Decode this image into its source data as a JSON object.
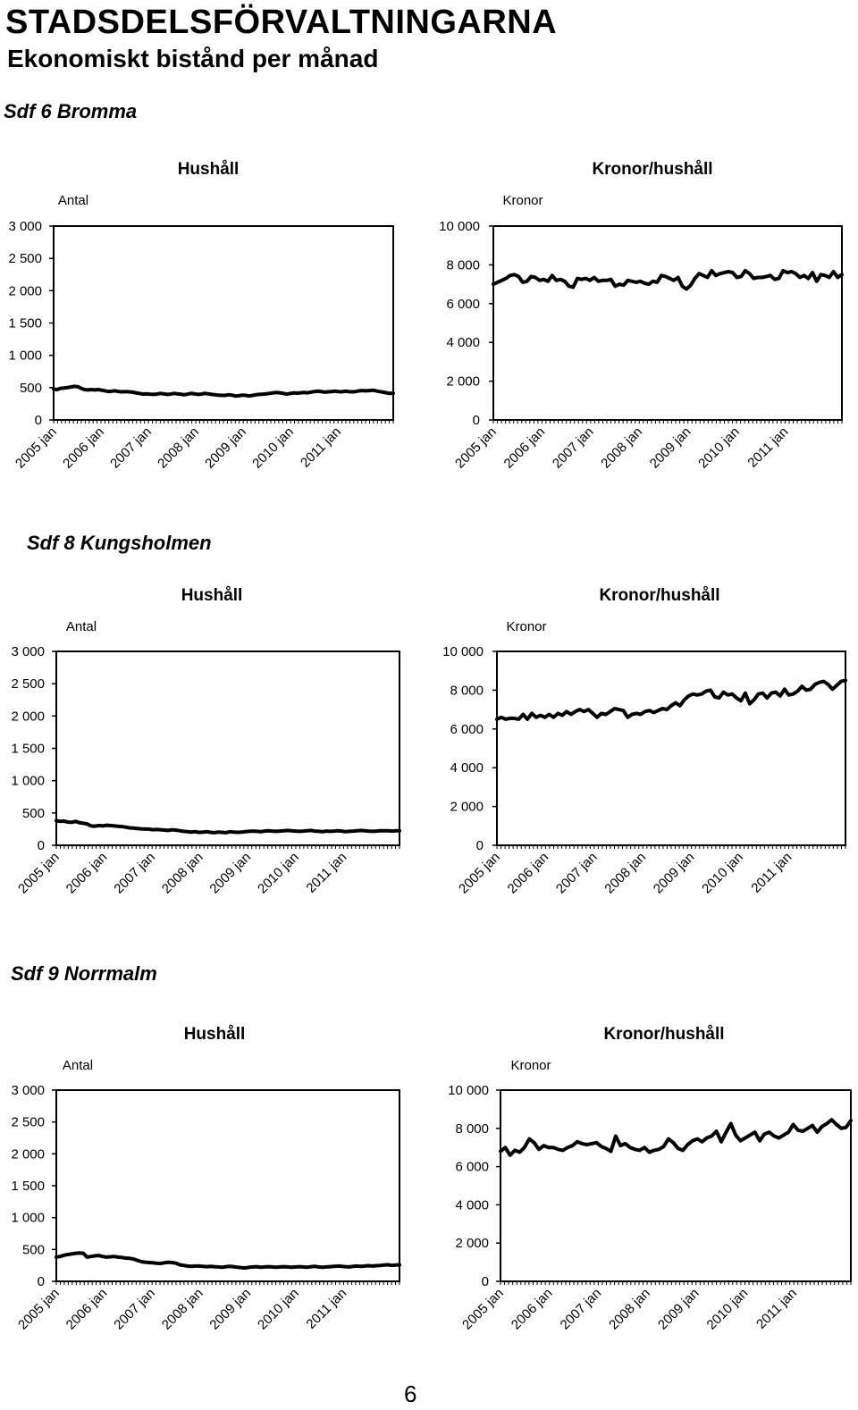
{
  "header": {
    "title": "STADSDELSFÖRVALTNINGARNA",
    "subtitle": "Ekonomiskt bistånd per månad"
  },
  "sections": [
    {
      "title": "Sdf 6 Bromma"
    },
    {
      "title": "Sdf 8 Kungsholmen"
    },
    {
      "title": "Sdf 9 Norrmalm"
    }
  ],
  "page_number": "6",
  "chart_data": [
    {
      "type": "line",
      "section": "Sdf 6 Bromma",
      "title": "Hushåll",
      "ylabel": "Antal",
      "xlabel": "",
      "ylim": [
        0,
        3000
      ],
      "grid": false,
      "yticks": [
        "0",
        "500",
        "1 000",
        "1 500",
        "2 000",
        "2 500",
        "3 000"
      ],
      "xticks": [
        "2005 jan",
        "2006 jan",
        "2007 jan",
        "2008 jan",
        "2009 jan",
        "2010 jan",
        "2011 jan"
      ],
      "x_start": "2005-01",
      "x_interval": "month",
      "series": [
        {
          "values": [
            480,
            470,
            490,
            495,
            500,
            510,
            520,
            515,
            490,
            470,
            465,
            470,
            465,
            470,
            460,
            450,
            440,
            445,
            450,
            440,
            435,
            440,
            435,
            430,
            420,
            410,
            400,
            405,
            400,
            395,
            400,
            410,
            405,
            395,
            400,
            410,
            405,
            400,
            390,
            400,
            410,
            405,
            395,
            400,
            410,
            405,
            395,
            390,
            385,
            380,
            380,
            390,
            385,
            370,
            375,
            385,
            380,
            370,
            380,
            390,
            395,
            400,
            405,
            410,
            420,
            425,
            420,
            410,
            400,
            410,
            420,
            415,
            420,
            425,
            420,
            430,
            440,
            445,
            440,
            430,
            435,
            440,
            445,
            440,
            435,
            445,
            440,
            435,
            440,
            450,
            455,
            450,
            455,
            460,
            450,
            440,
            430,
            420,
            410,
            415
          ]
        }
      ]
    },
    {
      "type": "line",
      "section": "Sdf 6 Bromma",
      "title": "Kronor/hushåll",
      "ylabel": "Kronor",
      "xlabel": "",
      "ylim": [
        0,
        10000
      ],
      "grid": false,
      "yticks": [
        "0",
        "2 000",
        "4 000",
        "6 000",
        "8 000",
        "10 000"
      ],
      "xticks": [
        "2005 jan",
        "2006 jan",
        "2007 jan",
        "2008 jan",
        "2009 jan",
        "2010 jan",
        "2011 jan"
      ],
      "x_start": "2005-01",
      "x_interval": "month",
      "series": [
        {
          "values": [
            7000,
            7100,
            7200,
            7300,
            7450,
            7500,
            7400,
            7100,
            7150,
            7400,
            7350,
            7200,
            7250,
            7150,
            7450,
            7200,
            7250,
            7150,
            6900,
            6850,
            7300,
            7250,
            7300,
            7200,
            7350,
            7150,
            7200,
            7200,
            7250,
            6900,
            7000,
            6950,
            7200,
            7150,
            7100,
            7150,
            7050,
            7000,
            7150,
            7100,
            7450,
            7400,
            7300,
            7200,
            7350,
            6900,
            6750,
            6950,
            7300,
            7550,
            7450,
            7350,
            7700,
            7450,
            7550,
            7600,
            7650,
            7600,
            7350,
            7400,
            7700,
            7550,
            7300,
            7350,
            7350,
            7400,
            7450,
            7250,
            7300,
            7700,
            7600,
            7650,
            7550,
            7350,
            7450,
            7300,
            7600,
            7150,
            7500,
            7450,
            7350,
            7650,
            7350,
            7500
          ]
        }
      ]
    },
    {
      "type": "line",
      "section": "Sdf 8 Kungsholmen",
      "title": "Hushåll",
      "ylabel": "Antal",
      "xlabel": "",
      "ylim": [
        0,
        3000
      ],
      "grid": false,
      "yticks": [
        "0",
        "500",
        "1 000",
        "1 500",
        "2 000",
        "2 500",
        "3 000"
      ],
      "xticks": [
        "2005 jan",
        "2006 jan",
        "2007 jan",
        "2008 jan",
        "2009 jan",
        "2010 jan",
        "2011 jan"
      ],
      "x_start": "2005-01",
      "x_interval": "month",
      "series": [
        {
          "values": [
            380,
            370,
            375,
            360,
            355,
            370,
            350,
            340,
            330,
            300,
            295,
            305,
            300,
            310,
            305,
            300,
            295,
            290,
            280,
            270,
            265,
            260,
            255,
            250,
            250,
            240,
            245,
            240,
            235,
            230,
            240,
            235,
            225,
            215,
            210,
            205,
            210,
            200,
            205,
            210,
            200,
            195,
            205,
            200,
            195,
            210,
            205,
            200,
            205,
            210,
            215,
            220,
            215,
            210,
            220,
            225,
            220,
            215,
            220,
            225,
            230,
            225,
            220,
            215,
            220,
            225,
            230,
            220,
            215,
            210,
            220,
            215,
            220,
            225,
            220,
            210,
            215,
            220,
            225,
            230,
            225,
            220,
            215,
            220,
            225,
            225,
            225,
            220,
            225,
            225
          ]
        }
      ]
    },
    {
      "type": "line",
      "section": "Sdf 8 Kungsholmen",
      "title": "Kronor/hushåll",
      "ylabel": "Kronor",
      "xlabel": "",
      "ylim": [
        0,
        10000
      ],
      "grid": false,
      "yticks": [
        "0",
        "2 000",
        "4 000",
        "6 000",
        "8 000",
        "10 000"
      ],
      "xticks": [
        "2005 jan",
        "2006 jan",
        "2007 jan",
        "2008 jan",
        "2009 jan",
        "2010 jan",
        "2011 jan"
      ],
      "x_start": "2005-01",
      "x_interval": "month",
      "series": [
        {
          "values": [
            6500,
            6600,
            6500,
            6550,
            6550,
            6500,
            6750,
            6500,
            6800,
            6600,
            6700,
            6600,
            6750,
            6600,
            6800,
            6700,
            6900,
            6750,
            6900,
            7000,
            6900,
            7000,
            6800,
            6600,
            6800,
            6750,
            6900,
            7050,
            7000,
            6950,
            6600,
            6750,
            6800,
            6750,
            6900,
            6950,
            6850,
            6950,
            7050,
            7000,
            7200,
            7350,
            7200,
            7500,
            7700,
            7800,
            7750,
            7800,
            7950,
            8000,
            7650,
            7600,
            7900,
            7750,
            7800,
            7600,
            7450,
            7850,
            7300,
            7500,
            7800,
            7850,
            7600,
            7850,
            7900,
            7700,
            8050,
            7750,
            7800,
            7950,
            8200,
            8000,
            8050,
            8300,
            8400,
            8450,
            8300,
            8050,
            8250,
            8450,
            8500
          ]
        }
      ]
    },
    {
      "type": "line",
      "section": "Sdf 9 Norrmalm",
      "title": "Hushåll",
      "ylabel": "Antal",
      "xlabel": "",
      "ylim": [
        0,
        3000
      ],
      "grid": false,
      "yticks": [
        "0",
        "500",
        "1 000",
        "1 500",
        "2 000",
        "2 500",
        "3 000"
      ],
      "xticks": [
        "2005 jan",
        "2006 jan",
        "2007 jan",
        "2008 jan",
        "2009 jan",
        "2010 jan",
        "2011 jan"
      ],
      "x_start": "2005-01",
      "x_interval": "month",
      "series": [
        {
          "values": [
            380,
            390,
            410,
            420,
            430,
            440,
            445,
            440,
            380,
            390,
            400,
            405,
            390,
            380,
            385,
            390,
            380,
            375,
            365,
            360,
            350,
            330,
            310,
            300,
            295,
            290,
            285,
            280,
            290,
            300,
            295,
            285,
            260,
            250,
            240,
            235,
            240,
            240,
            235,
            230,
            235,
            230,
            225,
            220,
            230,
            235,
            230,
            220,
            215,
            210,
            220,
            225,
            230,
            220,
            225,
            230,
            225,
            220,
            225,
            230,
            225,
            220,
            225,
            230,
            225,
            220,
            230,
            235,
            225,
            220,
            225,
            230,
            235,
            240,
            235,
            230,
            225,
            235,
            240,
            235,
            240,
            245,
            240,
            245,
            250,
            255,
            260,
            250,
            255,
            260
          ]
        }
      ]
    },
    {
      "type": "line",
      "section": "Sdf 9 Norrmalm",
      "title": "Kronor/hushåll",
      "ylabel": "Kronor",
      "xlabel": "",
      "ylim": [
        0,
        10000
      ],
      "grid": false,
      "yticks": [
        "0",
        "2 000",
        "4 000",
        "6 000",
        "8 000",
        "10 000"
      ],
      "xticks": [
        "2005 jan",
        "2006 jan",
        "2007 jan",
        "2008 jan",
        "2009 jan",
        "2010 jan",
        "2011 jan"
      ],
      "x_start": "2005-01",
      "x_interval": "month",
      "series": [
        {
          "values": [
            6800,
            7000,
            6600,
            6850,
            6750,
            7000,
            7450,
            7250,
            6900,
            7100,
            7000,
            7000,
            6900,
            6850,
            7000,
            7100,
            7300,
            7200,
            7150,
            7200,
            7250,
            7050,
            6950,
            6800,
            7600,
            7100,
            7200,
            7000,
            6900,
            6850,
            7000,
            6750,
            6850,
            6900,
            7050,
            7450,
            7250,
            6950,
            6850,
            7150,
            7350,
            7450,
            7300,
            7500,
            7600,
            7850,
            7300,
            7800,
            8250,
            7650,
            7350,
            7500,
            7650,
            7800,
            7350,
            7700,
            7800,
            7600,
            7500,
            7650,
            7800,
            8200,
            7900,
            7850,
            8000,
            8150,
            7800,
            8100,
            8250,
            8450,
            8200,
            8000,
            8050,
            8400
          ]
        }
      ]
    }
  ]
}
